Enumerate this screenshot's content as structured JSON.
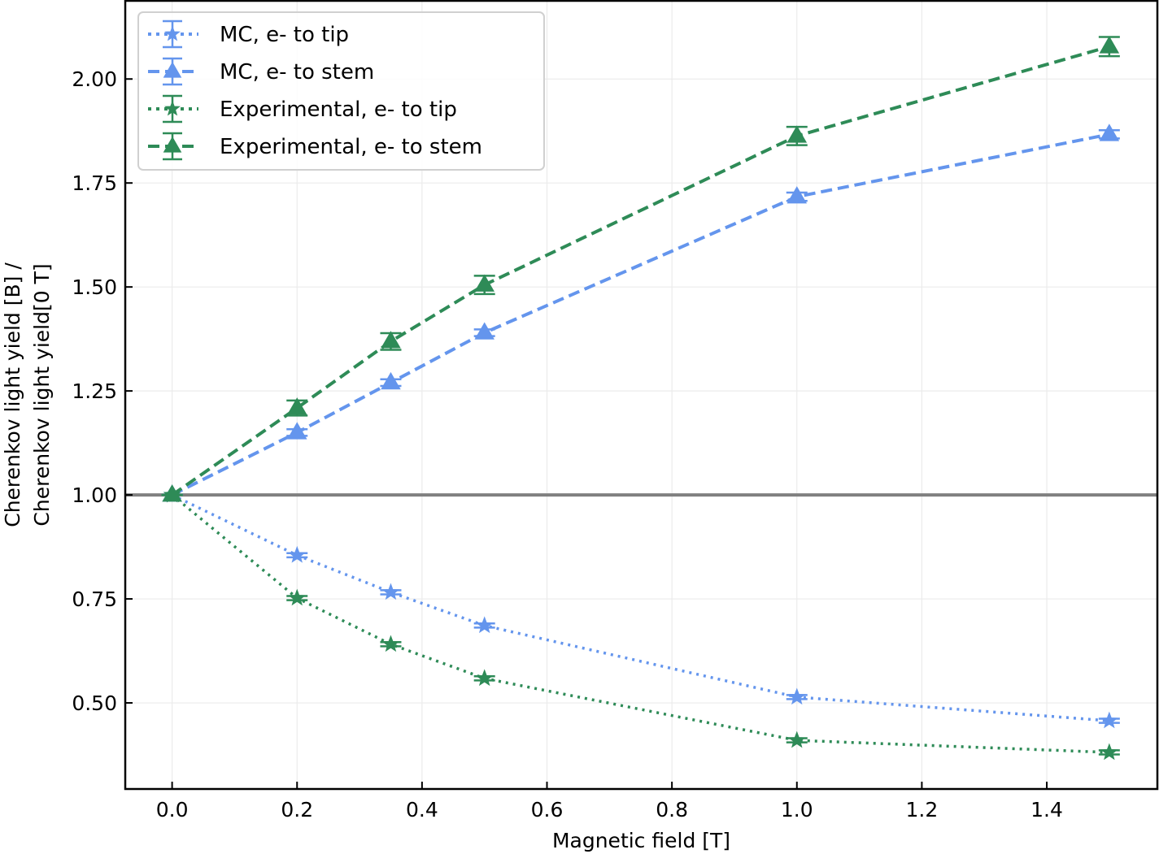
{
  "chart_data": {
    "type": "line",
    "title": "",
    "xlabel": "Magnetic field [T]",
    "ylabel_lines": [
      "Cherenkov light yield [B] /",
      "Cherenkov light yield[0 T]"
    ],
    "xlim": [
      -0.075,
      1.577
    ],
    "ylim": [
      0.293,
      2.188
    ],
    "xticks": [
      0.0,
      0.2,
      0.4,
      0.6,
      0.8,
      1.0,
      1.2,
      1.4
    ],
    "xtick_labels": [
      "0.0",
      "0.2",
      "0.4",
      "0.6",
      "0.8",
      "1.0",
      "1.2",
      "1.4"
    ],
    "yticks": [
      0.5,
      0.75,
      1.0,
      1.25,
      1.5,
      1.75,
      2.0
    ],
    "ytick_labels": [
      "0.50",
      "0.75",
      "1.00",
      "1.25",
      "1.50",
      "1.75",
      "2.00"
    ],
    "grid": true,
    "reference_line": {
      "y": 1.0,
      "color": "#808080"
    },
    "legend_position": "top-left",
    "x": [
      0.0,
      0.2,
      0.35,
      0.5,
      1.0,
      1.5
    ],
    "series": [
      {
        "name": "MC, e- to tip",
        "color": "#6495ed",
        "linestyle": "dotted",
        "marker": "star",
        "values": [
          1.0,
          0.855,
          0.766,
          0.686,
          0.514,
          0.457
        ],
        "errors": [
          0.0,
          0.005,
          0.005,
          0.005,
          0.005,
          0.005
        ]
      },
      {
        "name": "MC, e- to stem",
        "color": "#6495ed",
        "linestyle": "dashed",
        "marker": "triangle",
        "values": [
          1.0,
          1.15,
          1.27,
          1.39,
          1.717,
          1.867
        ],
        "errors": [
          0.0,
          0.008,
          0.008,
          0.008,
          0.01,
          0.01
        ]
      },
      {
        "name": "Experimental, e- to tip",
        "color": "#2e8b57",
        "linestyle": "dotted",
        "marker": "star",
        "values": [
          1.0,
          0.752,
          0.641,
          0.559,
          0.41,
          0.381
        ],
        "errors": [
          0.0,
          0.005,
          0.005,
          0.005,
          0.005,
          0.005
        ]
      },
      {
        "name": "Experimental, e- to stem",
        "color": "#2e8b57",
        "linestyle": "dashed",
        "marker": "triangle",
        "values": [
          1.0,
          1.209,
          1.369,
          1.505,
          1.863,
          2.078
        ],
        "errors": [
          0.0,
          0.018,
          0.02,
          0.022,
          0.022,
          0.023
        ]
      }
    ]
  }
}
